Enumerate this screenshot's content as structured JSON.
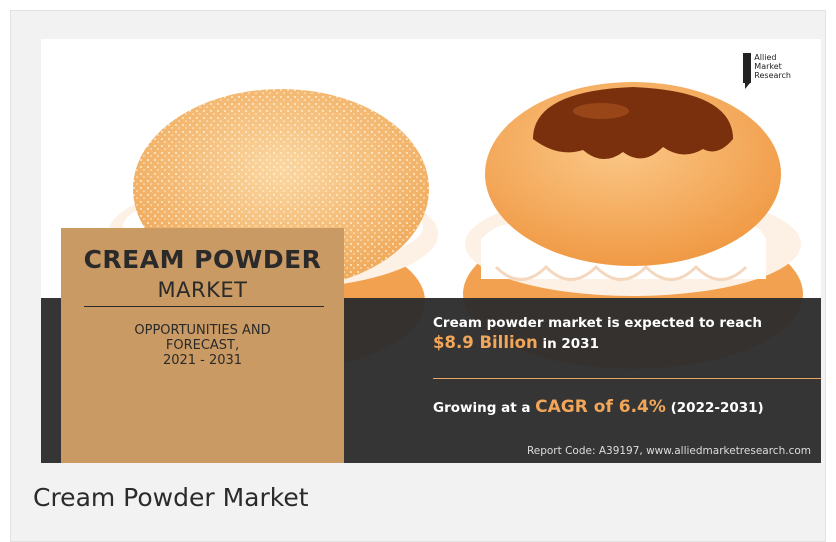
{
  "logo": {
    "line1": "Allied",
    "line2": "Market",
    "line3": "Research"
  },
  "title": {
    "main": "CREAM POWDER",
    "sub": "MARKET",
    "forecast_line1": "OPPORTUNITIES AND",
    "forecast_line2": "FORECAST,",
    "forecast_line3": "2021 - 2031"
  },
  "stats": {
    "reach_text": "Cream powder market is expected to reach",
    "value_highlight": "$8.9 Billion",
    "value_suffix": " in 2031",
    "growing_prefix": "Growing at a ",
    "cagr_highlight": "CAGR of 6.4%",
    "cagr_suffix": " (2022-2031)"
  },
  "report_code": "Report Code: A39197, www.alliedmarketresearch.com",
  "caption": "Cream Powder Market",
  "colors": {
    "title_box": "#c99a63",
    "dark_band": "#2d2d2d",
    "highlight": "#f2a65a",
    "bun": "#f3b267",
    "caramel": "#7a300d"
  },
  "icons": [
    "allied-market-research-logo-icon"
  ]
}
